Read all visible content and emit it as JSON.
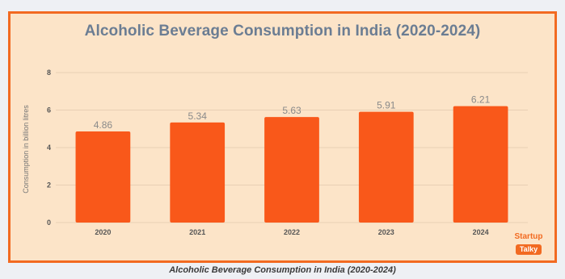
{
  "caption": "Alcoholic Beverage Consumption in India (2020-2024)",
  "logo": {
    "line1": "Startup",
    "line2": "Talky"
  },
  "colors": {
    "bar": "#f9581a",
    "frame": "#f26a21",
    "panel": "#fce4c8",
    "title": "#6b7d93",
    "axis_text": "#555555",
    "grid": "#e8cfb4"
  },
  "chart_data": {
    "type": "bar",
    "title": "Alcoholic Beverage Consumption in India (2020-2024)",
    "xlabel": "",
    "ylabel": "Consumption in billion litres",
    "categories": [
      "2020",
      "2021",
      "2022",
      "2023",
      "2024"
    ],
    "values": [
      4.86,
      5.34,
      5.63,
      5.91,
      6.21
    ],
    "value_labels": [
      "4.86",
      "5.34",
      "5.63",
      "5.91",
      "6.21"
    ],
    "ylim": [
      0,
      8
    ],
    "yticks": [
      0,
      2,
      4,
      6,
      8
    ],
    "grid": true,
    "legend": "none"
  }
}
